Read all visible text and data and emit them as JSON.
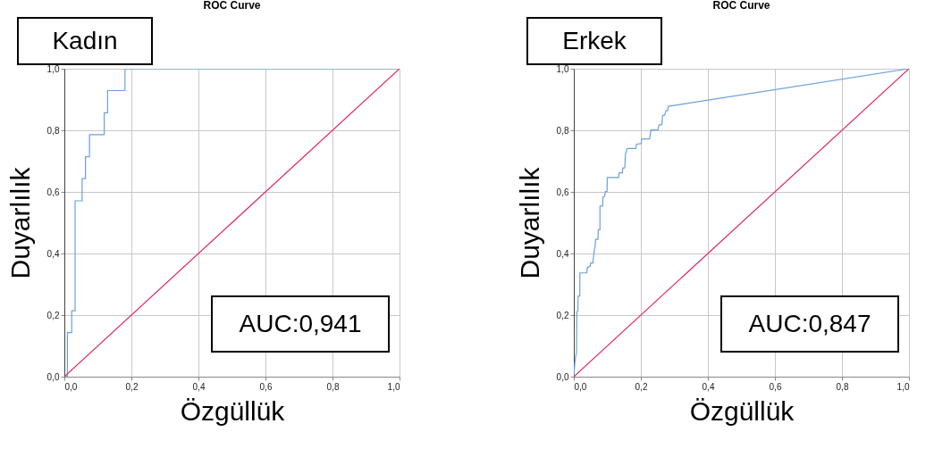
{
  "chart_data": [
    {
      "type": "line",
      "title": "ROC Curve",
      "xlabel": "Özgüllük",
      "ylabel": "Duyarlılık",
      "annotations": [
        "Kadın",
        "AUC:0,941"
      ],
      "xlim": [
        0,
        1
      ],
      "ylim": [
        0,
        1
      ],
      "xticks": [
        {
          "value": 0,
          "label": "0,0"
        },
        {
          "value": 0.2,
          "label": "0,2"
        },
        {
          "value": 0.4,
          "label": "0,4"
        },
        {
          "value": 0.6,
          "label": "0,6"
        },
        {
          "value": 0.8,
          "label": "0,8"
        },
        {
          "value": 1,
          "label": "1,0"
        }
      ],
      "yticks": [
        {
          "value": 0,
          "label": "0,0"
        },
        {
          "value": 0.2,
          "label": "0,2"
        },
        {
          "value": 0.4,
          "label": "0,4"
        },
        {
          "value": 0.6,
          "label": "0,6"
        },
        {
          "value": 0.8,
          "label": "0,8"
        },
        {
          "value": 1,
          "label": "1,0"
        }
      ],
      "grid": true,
      "series": [
        {
          "type": "step",
          "color": "#6a9fe0",
          "x": [
            0,
            0.009,
            0.022,
            0.032,
            0.053,
            0.063,
            0.075,
            0.119,
            0.129,
            0.181,
            1
          ],
          "values": [
            0,
            0.143,
            0.214,
            0.571,
            0.643,
            0.714,
            0.786,
            0.857,
            0.929,
            1,
            1
          ]
        },
        {
          "type": "line",
          "color": "#e0245e",
          "x": [
            0,
            1
          ],
          "values": [
            0,
            1
          ]
        }
      ]
    },
    {
      "type": "line",
      "title": "ROC Curve",
      "xlabel": "Özgüllük",
      "ylabel": "Duyarlılık",
      "annotations": [
        "Erkek",
        "AUC:0,847"
      ],
      "xlim": [
        0,
        1
      ],
      "ylim": [
        0,
        1
      ],
      "xticks": [
        {
          "value": 0,
          "label": "0,0"
        },
        {
          "value": 0.2,
          "label": "0,2"
        },
        {
          "value": 0.4,
          "label": "0,4"
        },
        {
          "value": 0.6,
          "label": "0,6"
        },
        {
          "value": 0.8,
          "label": "0,8"
        },
        {
          "value": 1,
          "label": "1,0"
        }
      ],
      "yticks": [
        {
          "value": 0,
          "label": "0,0"
        },
        {
          "value": 0.2,
          "label": "0,2"
        },
        {
          "value": 0.4,
          "label": "0,4"
        },
        {
          "value": 0.6,
          "label": "0,6"
        },
        {
          "value": 0.8,
          "label": "0,8"
        },
        {
          "value": 1,
          "label": "1,0"
        }
      ],
      "grid": true,
      "series": [
        {
          "type": "line",
          "color": "#6a9fe0",
          "x": [
            0,
            0.003,
            0.005,
            0.008,
            0.009,
            0.012,
            0.013,
            0.018,
            0.018,
            0.039,
            0.04,
            0.049,
            0.05,
            0.057,
            0.06,
            0.064,
            0.065,
            0.072,
            0.073,
            0.078,
            0.078,
            0.086,
            0.087,
            0.092,
            0.094,
            0.099,
            0.1,
            0.134,
            0.135,
            0.145,
            0.146,
            0.152,
            0.154,
            0.159,
            0.185,
            0.187,
            0.201,
            0.202,
            0.226,
            0.23,
            0.251,
            0.254,
            0.263,
            0.265,
            0.271,
            0.275,
            0.28,
            0.282,
            1
          ],
          "values": [
            0,
            0.044,
            0.061,
            0.079,
            0.21,
            0.214,
            0.262,
            0.262,
            0.337,
            0.337,
            0.354,
            0.359,
            0.369,
            0.369,
            0.402,
            0.428,
            0.446,
            0.446,
            0.477,
            0.477,
            0.554,
            0.554,
            0.584,
            0.586,
            0.601,
            0.601,
            0.647,
            0.647,
            0.662,
            0.662,
            0.678,
            0.678,
            0.722,
            0.741,
            0.741,
            0.755,
            0.757,
            0.772,
            0.772,
            0.801,
            0.801,
            0.818,
            0.818,
            0.849,
            0.849,
            0.864,
            0.864,
            0.878,
            1
          ]
        },
        {
          "type": "line",
          "color": "#e0245e",
          "x": [
            0,
            1
          ],
          "values": [
            0,
            1
          ]
        }
      ]
    }
  ]
}
